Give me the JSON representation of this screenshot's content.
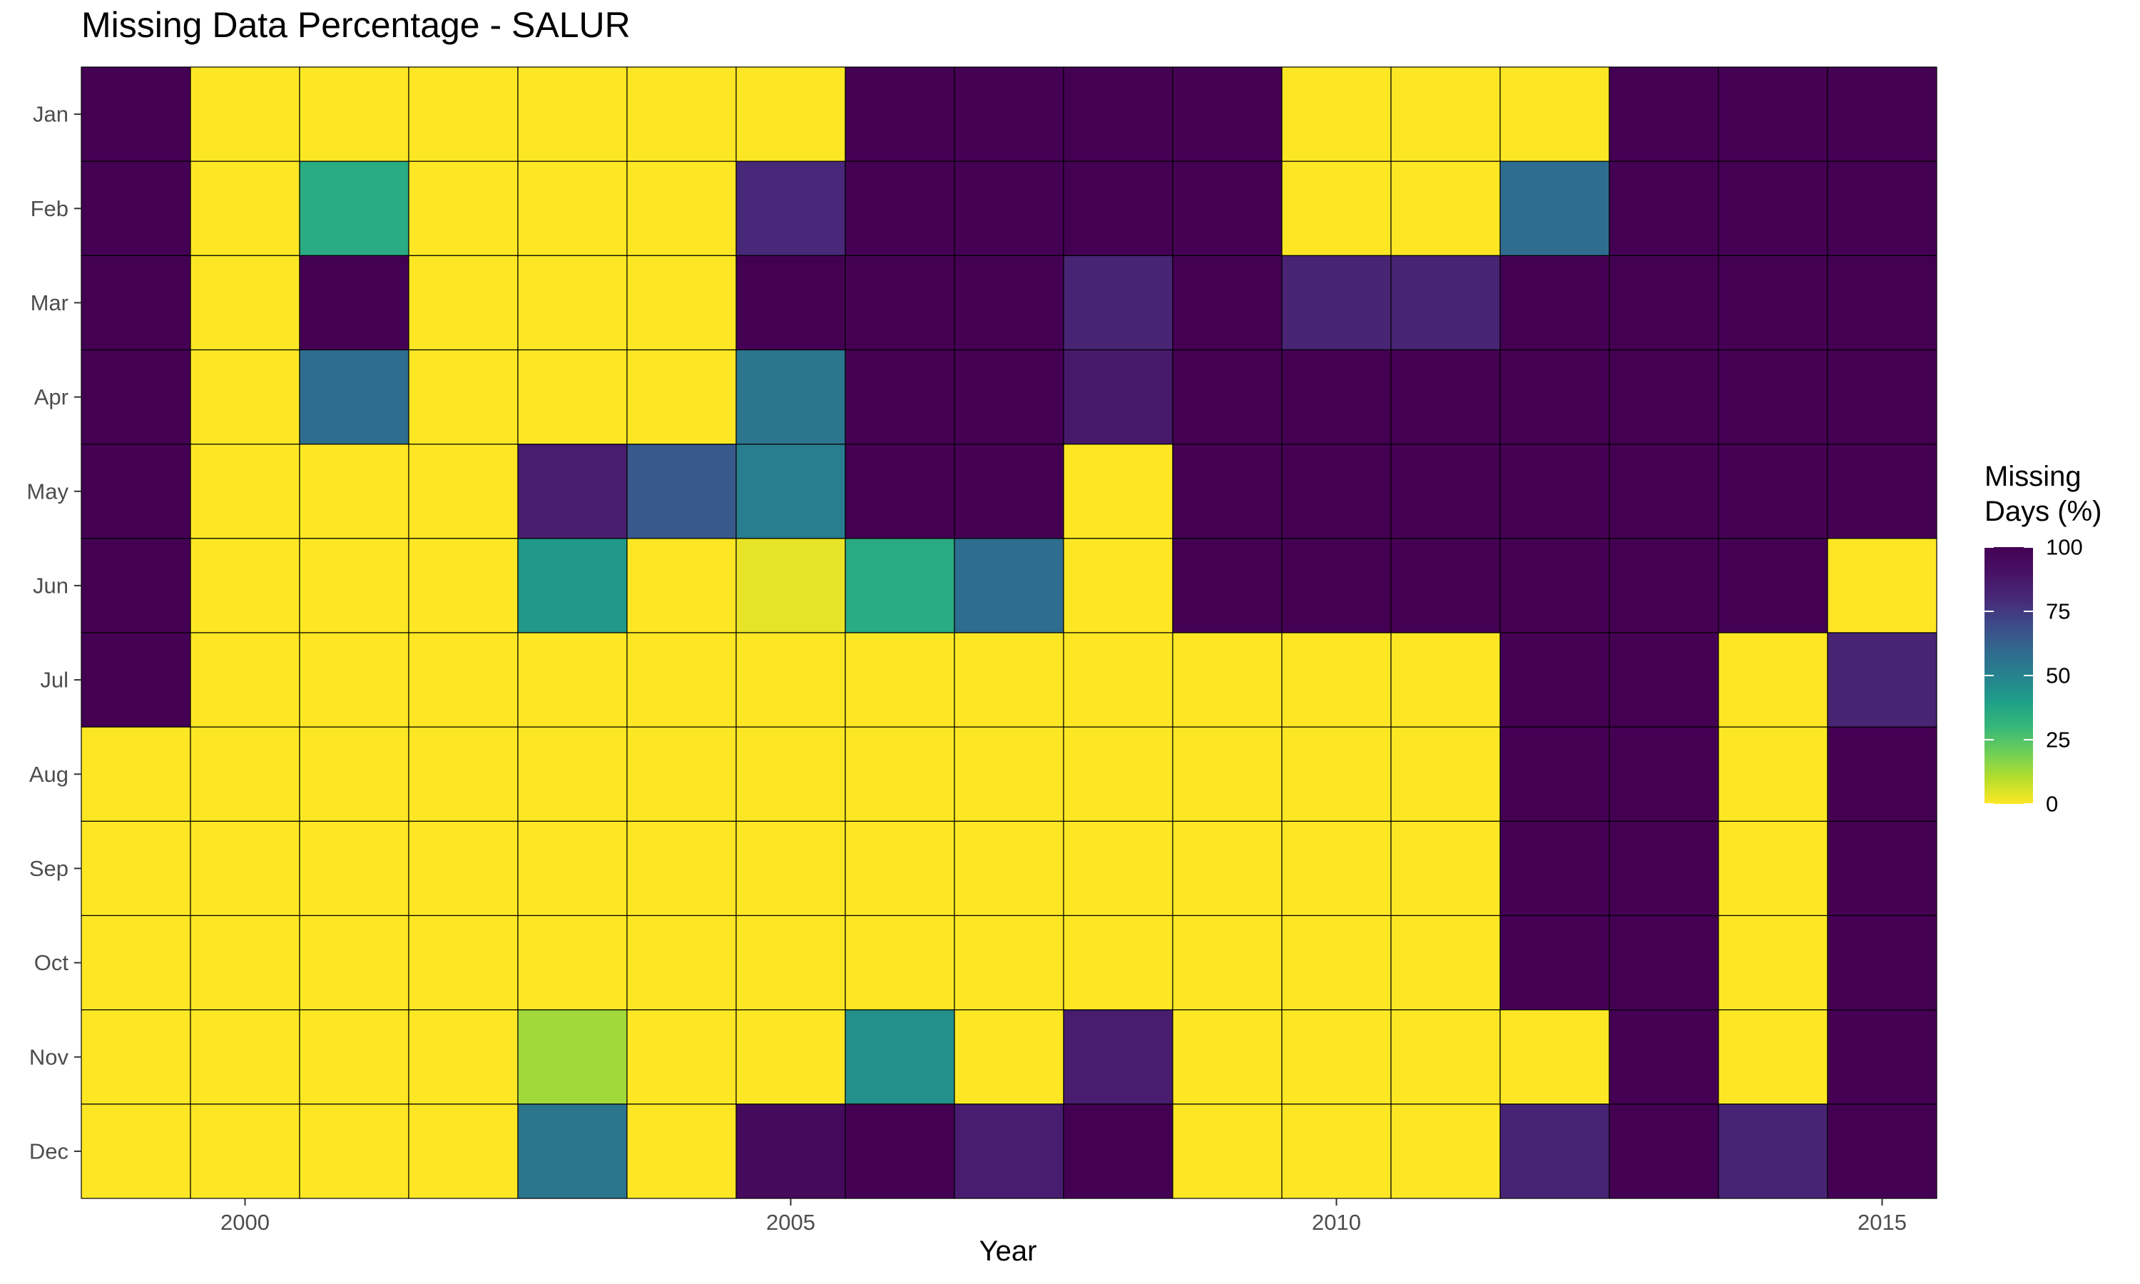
{
  "chart_data": {
    "type": "heatmap",
    "title": "Missing Data Percentage - SALUR",
    "xlabel": "Year",
    "ylabel": "",
    "x": [
      1999,
      2000,
      2001,
      2002,
      2003,
      2004,
      2005,
      2006,
      2007,
      2008,
      2009,
      2010,
      2011,
      2012,
      2013,
      2014,
      2015
    ],
    "y": [
      "Jan",
      "Feb",
      "Mar",
      "Apr",
      "May",
      "Jun",
      "Jul",
      "Aug",
      "Sep",
      "Oct",
      "Nov",
      "Dec"
    ],
    "x_ticks": [
      2000,
      2005,
      2010,
      2015
    ],
    "values": [
      [
        100,
        0,
        0,
        0,
        0,
        0,
        0,
        100,
        100,
        100,
        100,
        0,
        0,
        0,
        100,
        100,
        100
      ],
      [
        100,
        0,
        35,
        0,
        0,
        0,
        80,
        100,
        100,
        100,
        100,
        0,
        0,
        58,
        100,
        100,
        100
      ],
      [
        100,
        0,
        100,
        0,
        0,
        0,
        100,
        100,
        100,
        82,
        100,
        82,
        82,
        100,
        100,
        100,
        100
      ],
      [
        100,
        0,
        58,
        0,
        0,
        0,
        55,
        100,
        100,
        87,
        100,
        100,
        100,
        100,
        100,
        100,
        100
      ],
      [
        100,
        0,
        0,
        0,
        85,
        65,
        52,
        100,
        100,
        0,
        100,
        100,
        100,
        100,
        100,
        100,
        100
      ],
      [
        100,
        0,
        0,
        0,
        42,
        0,
        3,
        35,
        58,
        0,
        100,
        100,
        100,
        100,
        100,
        100,
        0
      ],
      [
        100,
        0,
        0,
        0,
        0,
        0,
        0,
        0,
        0,
        0,
        0,
        0,
        0,
        100,
        100,
        0,
        82
      ],
      [
        0,
        0,
        0,
        0,
        0,
        0,
        0,
        0,
        0,
        0,
        0,
        0,
        0,
        100,
        100,
        0,
        100
      ],
      [
        0,
        0,
        0,
        0,
        0,
        0,
        0,
        0,
        0,
        0,
        0,
        0,
        0,
        100,
        100,
        0,
        100
      ],
      [
        0,
        0,
        0,
        0,
        0,
        0,
        0,
        0,
        0,
        0,
        0,
        0,
        0,
        100,
        100,
        0,
        100
      ],
      [
        0,
        0,
        0,
        0,
        13,
        0,
        0,
        45,
        0,
        85,
        0,
        0,
        0,
        0,
        100,
        0,
        100
      ],
      [
        0,
        0,
        0,
        0,
        55,
        0,
        95,
        100,
        85,
        100,
        0,
        0,
        0,
        82,
        100,
        82,
        100
      ]
    ],
    "legend": {
      "title_line1": "Missing",
      "title_line2": "Days (%)",
      "ticks": [
        100,
        75,
        50,
        25,
        0
      ],
      "range": [
        0,
        100
      ],
      "placement": "right"
    },
    "grid": false,
    "colormap": "viridis (reversed: 0 = yellow, 100 = dark purple)"
  }
}
